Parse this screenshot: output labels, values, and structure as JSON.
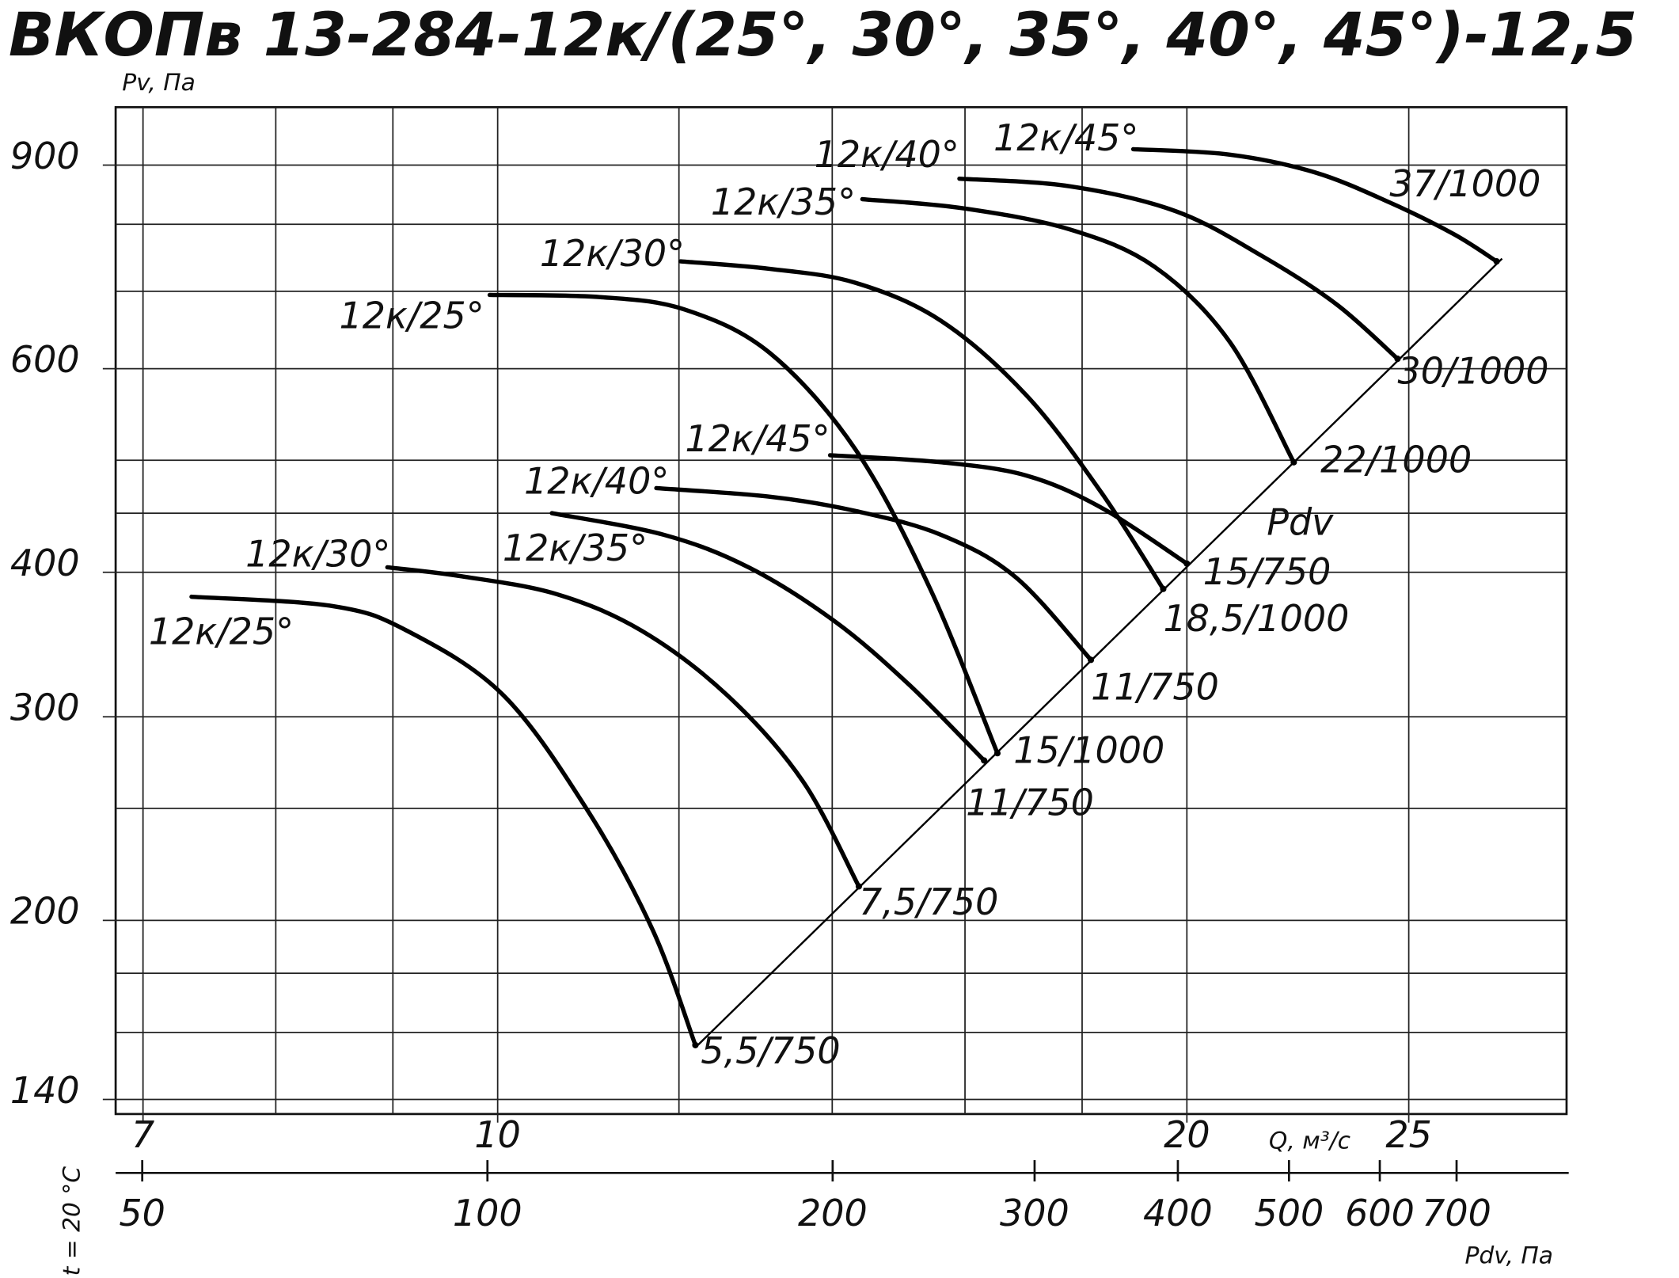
{
  "chart_data": {
    "type": "line",
    "title": "ВКОПв 13-284-12к/(25°, 30°, 35°, 40°, 45°)-12,5",
    "ylabel": "Pv, Па",
    "xlabel": "Q, м³/с",
    "x2label": "Pdv, Па",
    "note": "t = 20 °C",
    "xscale": "log",
    "yscale": "log",
    "grid": true,
    "xlim": [
      6.81,
      29.3
    ],
    "xticks": [
      7,
      10,
      20,
      25
    ],
    "xminor": [
      8,
      9,
      12,
      14,
      16,
      18
    ],
    "ylim": [
      136,
      1010
    ],
    "yticks": [
      140,
      200,
      300,
      400,
      600,
      900
    ],
    "yminor": [
      160,
      180,
      250,
      450,
      500,
      700,
      800
    ],
    "x2lim": [
      47.4,
      873
    ],
    "x2ticks": [
      50,
      100,
      200,
      300,
      400,
      500,
      600,
      700
    ],
    "series": [
      {
        "name": "12к/25°",
        "end_label": "5,5/750",
        "color": "#000000",
        "x": [
          7.35,
          8.47,
          9.13,
          10.06,
          10.96,
          11.69,
          12.2
        ],
        "values": [
          381,
          374,
          356,
          313,
          248,
          196,
          156
        ]
      },
      {
        "name": "12к/30°",
        "end_label": "7,5/750",
        "color": "#000000",
        "x": [
          8.95,
          9.63,
          10.61,
          11.56,
          12.6,
          13.59,
          14.38
        ],
        "values": [
          404,
          397,
          383,
          356,
          313,
          264,
          214
        ]
      },
      {
        "name": "12к/35°",
        "end_label": "11/750",
        "color": "#000000",
        "x": [
          10.56,
          11.82,
          12.87,
          14.03,
          15.12,
          16.31
        ],
        "values": [
          450,
          431,
          404,
          363,
          320,
          275
        ]
      },
      {
        "name": "12к/40°",
        "end_label": "11/750",
        "color": "#000000",
        "x": [
          11.73,
          13.15,
          14.33,
          15.62,
          16.84,
          18.16
        ],
        "values": [
          473,
          465,
          452,
          431,
          396,
          336
        ]
      },
      {
        "name": "12к/45°",
        "end_label": "15/750",
        "color": "#000000",
        "x": [
          13.97,
          15.62,
          17.02,
          18.35,
          20.0
        ],
        "values": [
          505,
          498,
          485,
          455,
          407
        ]
      },
      {
        "name": "12к/25°",
        "end_label": "15/1000",
        "color": "#000000",
        "x": [
          9.92,
          11.08,
          12.07,
          13.15,
          14.33,
          15.45,
          16.53
        ],
        "values": [
          695,
          692,
          675,
          619,
          511,
          387,
          279
        ]
      },
      {
        "name": "12к/30°",
        "end_label": "18,5/1000",
        "color": "#000000",
        "x": [
          12.02,
          13.15,
          14.33,
          15.62,
          17.02,
          18.35,
          19.53
        ],
        "values": [
          743,
          732,
          712,
          660,
          569,
          469,
          387
        ]
      },
      {
        "name": "12к/35°",
        "end_label": "22/1000",
        "color": "#000000",
        "x": [
          14.43,
          15.96,
          17.77,
          19.36,
          20.88,
          22.27
        ],
        "values": [
          841,
          826,
          792,
          735,
          633,
          498
        ]
      },
      {
        "name": "12к/40°",
        "end_label": "30/1000",
        "color": "#000000",
        "x": [
          15.91,
          17.77,
          19.78,
          21.57,
          23.25,
          24.72
        ],
        "values": [
          876,
          863,
          821,
          751,
          682,
          612
        ]
      },
      {
        "name": "12к/45°",
        "end_label": "37/1000",
        "color": "#000000",
        "x": [
          18.95,
          20.88,
          22.75,
          24.54,
          26.17,
          27.31
        ],
        "values": [
          929,
          919,
          887,
          835,
          784,
          743
        ]
      }
    ],
    "pdv_line": {
      "label": "Pdv",
      "color": "#000000",
      "x": [
        12.23,
        27.46
      ],
      "values": [
        156,
        747
      ]
    }
  }
}
